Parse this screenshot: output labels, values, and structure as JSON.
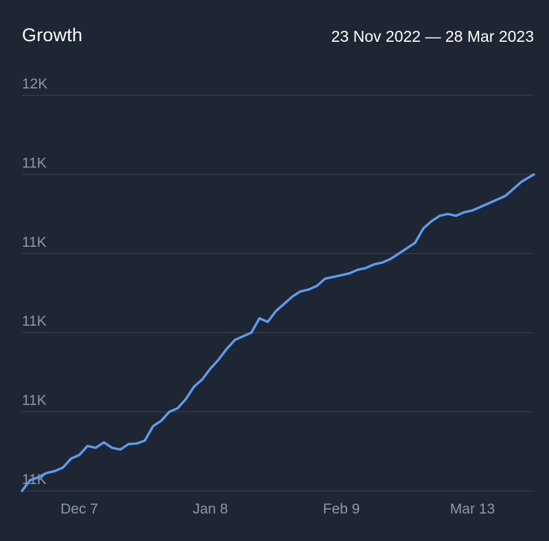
{
  "header": {
    "title": "Growth",
    "date_range": "23 Nov 2022 — 28 Mar 2023"
  },
  "colors": {
    "background": "#1e2633",
    "grid": "#3a4352",
    "line": "#5b9cf0",
    "tick_text": "#8e97a6"
  },
  "chart_data": {
    "type": "line",
    "title": "Growth",
    "xlabel": "",
    "ylabel": "",
    "grid": true,
    "legend": "none",
    "y_tick_labels": [
      "12K",
      "11K",
      "11K",
      "11K",
      "11K",
      "11K"
    ],
    "x_tick_labels": [
      {
        "date": "2022-12-07",
        "label": "Dec 7"
      },
      {
        "date": "2023-01-08",
        "label": "Jan 8"
      },
      {
        "date": "2023-02-09",
        "label": "Feb 9"
      },
      {
        "date": "2023-03-13",
        "label": "Mar 13"
      }
    ],
    "xlim": [
      "2022-11-23",
      "2023-03-28"
    ],
    "ylim": [
      10900,
      12000
    ],
    "series": [
      {
        "x": [
          "2022-11-23",
          "2022-11-25",
          "2022-11-27",
          "2022-11-29",
          "2022-12-01",
          "2022-12-03",
          "2022-12-05",
          "2022-12-07",
          "2022-12-09",
          "2022-12-11",
          "2022-12-13",
          "2022-12-15",
          "2022-12-17",
          "2022-12-19",
          "2022-12-21",
          "2022-12-23",
          "2022-12-25",
          "2022-12-27",
          "2022-12-29",
          "2022-12-31",
          "2023-01-02",
          "2023-01-04",
          "2023-01-06",
          "2023-01-08",
          "2023-01-10",
          "2023-01-12",
          "2023-01-14",
          "2023-01-16",
          "2023-01-18",
          "2023-01-20",
          "2023-01-22",
          "2023-01-24",
          "2023-01-26",
          "2023-01-28",
          "2023-01-30",
          "2023-02-01",
          "2023-02-03",
          "2023-02-05",
          "2023-02-07",
          "2023-02-09",
          "2023-02-11",
          "2023-02-13",
          "2023-02-15",
          "2023-02-17",
          "2023-02-19",
          "2023-02-21",
          "2023-02-23",
          "2023-02-25",
          "2023-02-27",
          "2023-03-01",
          "2023-03-03",
          "2023-03-05",
          "2023-03-07",
          "2023-03-09",
          "2023-03-11",
          "2023-03-13",
          "2023-03-15",
          "2023-03-17",
          "2023-03-19",
          "2023-03-21",
          "2023-03-23",
          "2023-03-25",
          "2023-03-28"
        ],
        "y": [
          10900,
          10930,
          10938,
          10950,
          10955,
          10965,
          10990,
          11000,
          11025,
          11020,
          11035,
          11020,
          11015,
          11030,
          11032,
          11040,
          11080,
          11095,
          11120,
          11130,
          11155,
          11190,
          11210,
          11240,
          11265,
          11295,
          11320,
          11330,
          11340,
          11380,
          11370,
          11400,
          11420,
          11440,
          11455,
          11460,
          11470,
          11490,
          11495,
          11500,
          11505,
          11515,
          11520,
          11530,
          11535,
          11545,
          11560,
          11575,
          11590,
          11630,
          11650,
          11665,
          11670,
          11665,
          11675,
          11680,
          11690,
          11700,
          11710,
          11720,
          11740,
          11760,
          11780
        ]
      }
    ]
  }
}
